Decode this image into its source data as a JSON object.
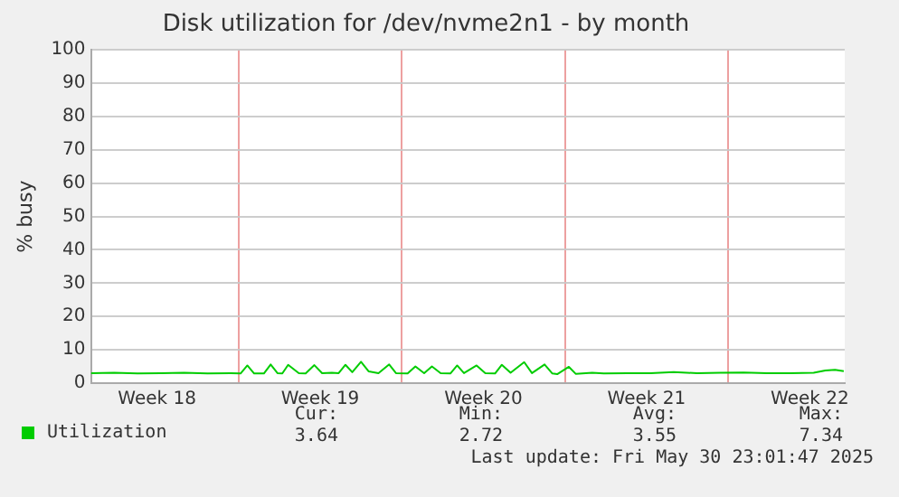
{
  "chart_data": {
    "type": "line",
    "title": "Disk utilization for /dev/nvme2n1 - by month",
    "ylabel": "% busy",
    "x": [
      "2025-04-28T16:00",
      "2025-04-29T16:00",
      "2025-04-30T16:00",
      "2025-05-01T16:00",
      "2025-05-02T16:00",
      "2025-05-03T16:00",
      "2025-05-04T16:00",
      "2025-05-05T02:00",
      "2025-05-05T09:00",
      "2025-05-05T16:00",
      "2025-05-06T02:00",
      "2025-05-06T09:00",
      "2025-05-06T16:00",
      "2025-05-06T21:00",
      "2025-05-07T03:00",
      "2025-05-07T14:00",
      "2025-05-07T21:00",
      "2025-05-08T06:00",
      "2025-05-08T14:00",
      "2025-05-09T00:00",
      "2025-05-09T07:00",
      "2025-05-09T14:00",
      "2025-05-09T21:00",
      "2025-05-10T06:00",
      "2025-05-10T14:00",
      "2025-05-11T00:00",
      "2025-05-11T11:00",
      "2025-05-11T18:00",
      "2025-05-12T06:00",
      "2025-05-12T14:00",
      "2025-05-12T23:00",
      "2025-05-13T07:00",
      "2025-05-13T16:00",
      "2025-05-14T02:00",
      "2025-05-14T09:00",
      "2025-05-14T16:00",
      "2025-05-15T05:00",
      "2025-05-15T14:00",
      "2025-05-16T00:00",
      "2025-05-16T07:00",
      "2025-05-16T16:00",
      "2025-05-17T06:00",
      "2025-05-17T14:00",
      "2025-05-18T03:00",
      "2025-05-18T11:00",
      "2025-05-18T16:00",
      "2025-05-19T04:00",
      "2025-05-19T11:00",
      "2025-05-20T04:00",
      "2025-05-20T16:00",
      "2025-05-21T16:00",
      "2025-05-22T16:00",
      "2025-05-23T16:00",
      "2025-05-24T16:00",
      "2025-05-25T16:00",
      "2025-05-26T16:00",
      "2025-05-27T16:00",
      "2025-05-28T16:00",
      "2025-05-29T16:00",
      "2025-05-30T04:00",
      "2025-05-30T14:00",
      "2025-05-30T23:00"
    ],
    "series": [
      {
        "name": "Utilization",
        "color": "#00cc00",
        "values": [
          3.0,
          3.1,
          2.9,
          3.0,
          3.1,
          2.9,
          3.0,
          2.9,
          5.3,
          2.9,
          2.9,
          5.6,
          3.0,
          2.9,
          5.5,
          3.0,
          2.9,
          5.4,
          3.0,
          3.1,
          3.0,
          5.5,
          3.3,
          6.4,
          3.5,
          3.0,
          5.6,
          3.0,
          2.9,
          5.0,
          3.0,
          5.0,
          3.0,
          2.9,
          5.3,
          3.0,
          5.3,
          3.0,
          2.9,
          5.5,
          3.1,
          6.3,
          3.0,
          5.6,
          2.9,
          2.7,
          4.9,
          2.8,
          3.1,
          2.9,
          3.0,
          3.0,
          3.3,
          3.0,
          3.1,
          3.2,
          3.0,
          3.0,
          3.1,
          3.8,
          4.0,
          3.6
        ]
      }
    ],
    "xlim": [
      "2025-04-28T16:00",
      "2025-05-31T00:00"
    ],
    "xticks": [
      {
        "value": "2025-05-01T12:00",
        "label": "Week 18"
      },
      {
        "value": "2025-05-05",
        "label": null
      },
      {
        "value": "2025-05-08T12:00",
        "label": "Week 19"
      },
      {
        "value": "2025-05-12",
        "label": null
      },
      {
        "value": "2025-05-15T12:00",
        "label": "Week 20"
      },
      {
        "value": "2025-05-19",
        "label": null
      },
      {
        "value": "2025-05-22T12:00",
        "label": "Week 21"
      },
      {
        "value": "2025-05-26",
        "label": null
      },
      {
        "value": "2025-05-29T12:00",
        "label": "Week 22"
      }
    ],
    "ylim": [
      0,
      100
    ],
    "yticks": [
      0,
      10,
      20,
      30,
      40,
      50,
      60,
      70,
      80,
      90,
      100
    ],
    "grid": true,
    "legend": "bottom",
    "marker": "none",
    "line_style": "solid",
    "annotations": [
      "Cur:",
      "Min:",
      "Avg:",
      "Max:",
      "3.64",
      "2.72",
      "3.55",
      "7.34",
      "Last update: Fri May 30 23:01:47 2025"
    ]
  }
}
